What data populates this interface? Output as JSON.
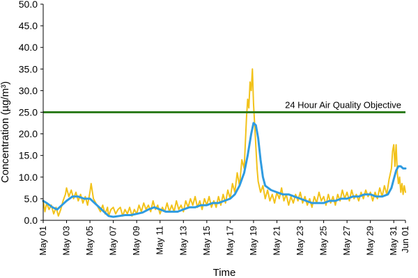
{
  "chart_data": {
    "type": "line",
    "xlabel": "Time",
    "ylabel": "Concentration (µg/m³)",
    "ylim": [
      0,
      50
    ],
    "yticks": [
      "0.0",
      "5.0",
      "10.0",
      "15.0",
      "20.0",
      "25.0",
      "30.0",
      "35.0",
      "40.0",
      "45.0",
      "50.0"
    ],
    "xlim": [
      0,
      31
    ],
    "xtick_labels": [
      "May 01",
      "May 03",
      "May 05",
      "May 07",
      "May 09",
      "May 11",
      "May 13",
      "May 15",
      "May 17",
      "May 19",
      "May 21",
      "May 23",
      "May 25",
      "May 27",
      "May 29",
      "May 31",
      "Jun 01"
    ],
    "xtick_days": [
      0,
      2,
      4,
      6,
      8,
      10,
      12,
      14,
      16,
      18,
      20,
      22,
      24,
      26,
      28,
      30,
      31
    ],
    "grid": false,
    "objective": {
      "label": "24 Hour Air Quality Objective",
      "value": 25,
      "color": "#2e7d1e"
    },
    "series": [
      {
        "key": "hourly",
        "color": "#f2c21a",
        "points": [
          [
            0.0,
            4.5
          ],
          [
            0.15,
            2.0
          ],
          [
            0.3,
            4.0
          ],
          [
            0.5,
            2.5
          ],
          [
            0.7,
            3.5
          ],
          [
            0.9,
            1.5
          ],
          [
            1.1,
            3.0
          ],
          [
            1.3,
            1.0
          ],
          [
            1.5,
            2.5
          ],
          [
            1.7,
            4.5
          ],
          [
            1.9,
            6.0
          ],
          [
            2.0,
            7.5
          ],
          [
            2.2,
            5.5
          ],
          [
            2.4,
            7.0
          ],
          [
            2.6,
            5.0
          ],
          [
            2.8,
            6.5
          ],
          [
            3.0,
            4.5
          ],
          [
            3.2,
            6.0
          ],
          [
            3.4,
            4.0
          ],
          [
            3.6,
            5.5
          ],
          [
            3.8,
            3.5
          ],
          [
            4.0,
            6.5
          ],
          [
            4.1,
            8.5
          ],
          [
            4.3,
            5.0
          ],
          [
            4.5,
            4.0
          ],
          [
            4.7,
            3.0
          ],
          [
            4.9,
            2.0
          ],
          [
            5.1,
            3.5
          ],
          [
            5.3,
            1.5
          ],
          [
            5.5,
            3.0
          ],
          [
            5.6,
            1.0
          ],
          [
            5.8,
            2.5
          ],
          [
            6.0,
            3.0
          ],
          [
            6.2,
            1.5
          ],
          [
            6.4,
            2.5
          ],
          [
            6.6,
            3.0
          ],
          [
            6.8,
            1.0
          ],
          [
            7.0,
            2.5
          ],
          [
            7.2,
            1.5
          ],
          [
            7.4,
            3.0
          ],
          [
            7.6,
            1.0
          ],
          [
            7.8,
            2.5
          ],
          [
            8.0,
            1.5
          ],
          [
            8.2,
            3.5
          ],
          [
            8.4,
            2.0
          ],
          [
            8.6,
            4.0
          ],
          [
            8.8,
            2.5
          ],
          [
            9.0,
            3.5
          ],
          [
            9.2,
            2.0
          ],
          [
            9.4,
            4.5
          ],
          [
            9.6,
            2.5
          ],
          [
            9.8,
            3.5
          ],
          [
            10.0,
            1.5
          ],
          [
            10.2,
            3.0
          ],
          [
            10.4,
            2.0
          ],
          [
            10.6,
            4.0
          ],
          [
            10.8,
            2.0
          ],
          [
            11.0,
            3.5
          ],
          [
            11.2,
            2.0
          ],
          [
            11.4,
            4.5
          ],
          [
            11.6,
            2.5
          ],
          [
            11.8,
            3.5
          ],
          [
            12.0,
            2.0
          ],
          [
            12.2,
            4.5
          ],
          [
            12.4,
            3.0
          ],
          [
            12.6,
            5.0
          ],
          [
            12.8,
            3.5
          ],
          [
            13.0,
            5.5
          ],
          [
            13.2,
            3.0
          ],
          [
            13.4,
            4.5
          ],
          [
            13.6,
            2.5
          ],
          [
            13.8,
            5.0
          ],
          [
            14.0,
            3.5
          ],
          [
            14.2,
            5.5
          ],
          [
            14.4,
            3.0
          ],
          [
            14.6,
            4.5
          ],
          [
            14.8,
            3.0
          ],
          [
            15.0,
            5.5
          ],
          [
            15.2,
            3.5
          ],
          [
            15.4,
            6.0
          ],
          [
            15.6,
            4.0
          ],
          [
            15.8,
            7.0
          ],
          [
            16.0,
            5.0
          ],
          [
            16.2,
            8.5
          ],
          [
            16.4,
            6.5
          ],
          [
            16.6,
            11.0
          ],
          [
            16.8,
            8.0
          ],
          [
            17.0,
            14.0
          ],
          [
            17.2,
            12.0
          ],
          [
            17.4,
            24.0
          ],
          [
            17.5,
            28.0
          ],
          [
            17.6,
            26.0
          ],
          [
            17.7,
            32.0
          ],
          [
            17.8,
            30.0
          ],
          [
            17.9,
            35.0
          ],
          [
            18.0,
            27.0
          ],
          [
            18.1,
            22.0
          ],
          [
            18.2,
            17.0
          ],
          [
            18.3,
            12.0
          ],
          [
            18.4,
            9.0
          ],
          [
            18.6,
            6.5
          ],
          [
            18.8,
            8.0
          ],
          [
            19.0,
            5.0
          ],
          [
            19.2,
            7.0
          ],
          [
            19.4,
            4.5
          ],
          [
            19.6,
            6.0
          ],
          [
            19.8,
            4.0
          ],
          [
            20.0,
            6.5
          ],
          [
            20.2,
            5.0
          ],
          [
            20.4,
            7.5
          ],
          [
            20.6,
            4.5
          ],
          [
            20.8,
            6.0
          ],
          [
            21.0,
            3.5
          ],
          [
            21.2,
            5.5
          ],
          [
            21.4,
            4.0
          ],
          [
            21.6,
            6.0
          ],
          [
            21.8,
            4.5
          ],
          [
            22.0,
            6.5
          ],
          [
            22.2,
            4.0
          ],
          [
            22.4,
            5.5
          ],
          [
            22.6,
            3.5
          ],
          [
            22.8,
            5.0
          ],
          [
            23.0,
            3.0
          ],
          [
            23.2,
            5.5
          ],
          [
            23.4,
            4.0
          ],
          [
            23.6,
            6.5
          ],
          [
            23.8,
            4.5
          ],
          [
            24.0,
            5.5
          ],
          [
            24.2,
            3.5
          ],
          [
            24.4,
            6.0
          ],
          [
            24.6,
            4.0
          ],
          [
            24.8,
            5.5
          ],
          [
            25.0,
            3.5
          ],
          [
            25.2,
            6.0
          ],
          [
            25.4,
            4.5
          ],
          [
            25.6,
            7.0
          ],
          [
            25.8,
            5.0
          ],
          [
            26.0,
            6.5
          ],
          [
            26.2,
            4.5
          ],
          [
            26.4,
            7.0
          ],
          [
            26.6,
            5.0
          ],
          [
            26.8,
            6.0
          ],
          [
            27.0,
            4.5
          ],
          [
            27.2,
            6.5
          ],
          [
            27.4,
            5.0
          ],
          [
            27.6,
            7.0
          ],
          [
            27.8,
            5.5
          ],
          [
            28.0,
            6.5
          ],
          [
            28.2,
            4.5
          ],
          [
            28.4,
            6.5
          ],
          [
            28.6,
            5.0
          ],
          [
            28.8,
            7.5
          ],
          [
            29.0,
            5.5
          ],
          [
            29.2,
            8.0
          ],
          [
            29.4,
            6.0
          ],
          [
            29.6,
            9.5
          ],
          [
            29.8,
            12.0
          ],
          [
            29.9,
            16.0
          ],
          [
            30.0,
            17.5
          ],
          [
            30.1,
            12.5
          ],
          [
            30.2,
            17.5
          ],
          [
            30.3,
            11.0
          ],
          [
            30.4,
            8.5
          ],
          [
            30.5,
            10.0
          ],
          [
            30.6,
            6.5
          ],
          [
            30.7,
            8.5
          ],
          [
            30.8,
            6.0
          ],
          [
            30.9,
            8.0
          ],
          [
            31.0,
            6.5
          ]
        ]
      },
      {
        "key": "rolling",
        "color": "#2f9be0",
        "points": [
          [
            0.0,
            4.5
          ],
          [
            0.3,
            4.0
          ],
          [
            0.8,
            3.0
          ],
          [
            1.2,
            2.5
          ],
          [
            1.6,
            3.5
          ],
          [
            2.0,
            4.5
          ],
          [
            2.5,
            5.5
          ],
          [
            3.0,
            5.5
          ],
          [
            3.5,
            5.0
          ],
          [
            4.0,
            5.0
          ],
          [
            4.4,
            4.0
          ],
          [
            4.8,
            3.0
          ],
          [
            5.2,
            2.0
          ],
          [
            5.6,
            1.0
          ],
          [
            6.0,
            0.8
          ],
          [
            6.5,
            1.0
          ],
          [
            7.0,
            1.2
          ],
          [
            7.5,
            1.2
          ],
          [
            8.0,
            1.5
          ],
          [
            8.5,
            1.8
          ],
          [
            9.0,
            2.5
          ],
          [
            9.5,
            3.0
          ],
          [
            10.0,
            2.5
          ],
          [
            10.5,
            2.0
          ],
          [
            11.0,
            2.0
          ],
          [
            11.5,
            2.0
          ],
          [
            12.0,
            2.5
          ],
          [
            12.5,
            3.0
          ],
          [
            13.0,
            3.0
          ],
          [
            13.5,
            3.5
          ],
          [
            14.0,
            3.5
          ],
          [
            14.5,
            4.0
          ],
          [
            15.0,
            4.0
          ],
          [
            15.5,
            4.5
          ],
          [
            16.0,
            5.0
          ],
          [
            16.4,
            6.0
          ],
          [
            16.8,
            8.0
          ],
          [
            17.2,
            11.0
          ],
          [
            17.5,
            15.0
          ],
          [
            17.8,
            20.0
          ],
          [
            18.0,
            22.5
          ],
          [
            18.2,
            22.0
          ],
          [
            18.4,
            19.0
          ],
          [
            18.6,
            14.0
          ],
          [
            18.8,
            10.0
          ],
          [
            19.0,
            8.0
          ],
          [
            19.5,
            7.0
          ],
          [
            20.0,
            6.5
          ],
          [
            20.5,
            6.0
          ],
          [
            21.0,
            6.0
          ],
          [
            21.5,
            5.5
          ],
          [
            22.0,
            5.0
          ],
          [
            22.5,
            4.5
          ],
          [
            23.0,
            4.0
          ],
          [
            23.5,
            4.0
          ],
          [
            24.0,
            4.0
          ],
          [
            24.5,
            4.5
          ],
          [
            25.0,
            4.5
          ],
          [
            25.5,
            5.0
          ],
          [
            26.0,
            5.0
          ],
          [
            26.5,
            5.5
          ],
          [
            27.0,
            5.5
          ],
          [
            27.5,
            6.0
          ],
          [
            28.0,
            6.0
          ],
          [
            28.5,
            5.5
          ],
          [
            29.0,
            5.5
          ],
          [
            29.5,
            6.0
          ],
          [
            29.8,
            7.5
          ],
          [
            30.0,
            9.5
          ],
          [
            30.2,
            11.5
          ],
          [
            30.4,
            12.5
          ],
          [
            30.6,
            12.5
          ],
          [
            30.8,
            12.0
          ],
          [
            31.0,
            12.0
          ]
        ]
      }
    ]
  }
}
